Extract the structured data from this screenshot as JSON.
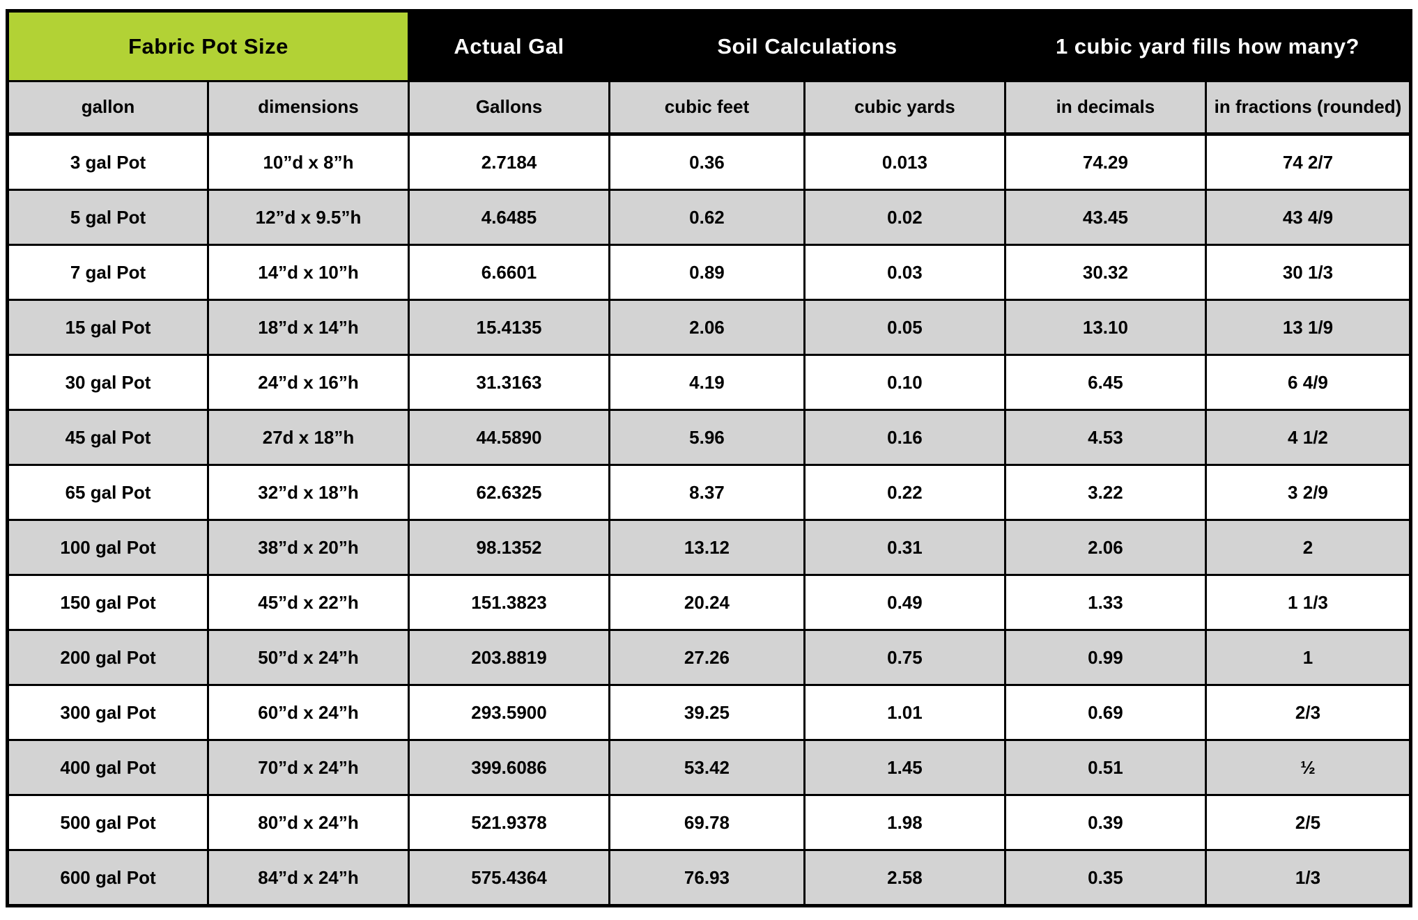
{
  "colors": {
    "accent_green": "#b2d235",
    "header_black": "#000000",
    "header_text_white": "#ffffff",
    "stripe_gray": "#d3d3d3",
    "row_white": "#ffffff",
    "border_black": "#000000"
  },
  "chart_data": {
    "type": "table",
    "title": "Fabric Pot Size soil calculation chart",
    "group_headers": [
      {
        "label": "Fabric Pot Size",
        "colspan": 2,
        "style": "green"
      },
      {
        "label": "Actual Gal",
        "colspan": 1,
        "style": "black"
      },
      {
        "label": "Soil Calculations",
        "colspan": 2,
        "style": "black"
      },
      {
        "label": "1 cubic yard fills how many?",
        "colspan": 2,
        "style": "black"
      }
    ],
    "columns": [
      "gallon",
      "dimensions",
      "Gallons",
      "cubic feet",
      "cubic yards",
      "in decimals",
      "in fractions (rounded)"
    ],
    "rows": [
      [
        "3 gal Pot",
        "10”d x 8”h",
        "2.7184",
        "0.36",
        "0.013",
        "74.29",
        "74 2/7"
      ],
      [
        "5 gal Pot",
        "12”d x 9.5”h",
        "4.6485",
        "0.62",
        "0.02",
        "43.45",
        "43 4/9"
      ],
      [
        "7 gal Pot",
        "14”d x 10”h",
        "6.6601",
        "0.89",
        "0.03",
        "30.32",
        "30 1/3"
      ],
      [
        "15 gal Pot",
        "18”d x 14”h",
        "15.4135",
        "2.06",
        "0.05",
        "13.10",
        "13 1/9"
      ],
      [
        "30 gal Pot",
        "24”d x 16”h",
        "31.3163",
        "4.19",
        "0.10",
        "6.45",
        "6 4/9"
      ],
      [
        "45 gal Pot",
        "27d x 18”h",
        "44.5890",
        "5.96",
        "0.16",
        "4.53",
        "4 1/2"
      ],
      [
        "65 gal Pot",
        "32”d x 18”h",
        "62.6325",
        "8.37",
        "0.22",
        "3.22",
        "3 2/9"
      ],
      [
        "100 gal Pot",
        "38”d x 20”h",
        "98.1352",
        "13.12",
        "0.31",
        "2.06",
        "2"
      ],
      [
        "150 gal Pot",
        "45”d x 22”h",
        "151.3823",
        "20.24",
        "0.49",
        "1.33",
        "1 1/3"
      ],
      [
        "200 gal Pot",
        "50”d x 24”h",
        "203.8819",
        "27.26",
        "0.75",
        "0.99",
        "1"
      ],
      [
        "300 gal Pot",
        "60”d x 24”h",
        "293.5900",
        "39.25",
        "1.01",
        "0.69",
        "2/3"
      ],
      [
        "400 gal Pot",
        "70”d x 24”h",
        "399.6086",
        "53.42",
        "1.45",
        "0.51",
        "½"
      ],
      [
        "500 gal Pot",
        "80”d x 24”h",
        "521.9378",
        "69.78",
        "1.98",
        "0.39",
        "2/5"
      ],
      [
        "600 gal Pot",
        "84”d x 24”h",
        "575.4364",
        "76.93",
        "2.58",
        "0.35",
        "1/3"
      ]
    ],
    "layout": {
      "striping": "white/gray alternating starting white",
      "column_count": 7,
      "row_count": 14
    }
  }
}
